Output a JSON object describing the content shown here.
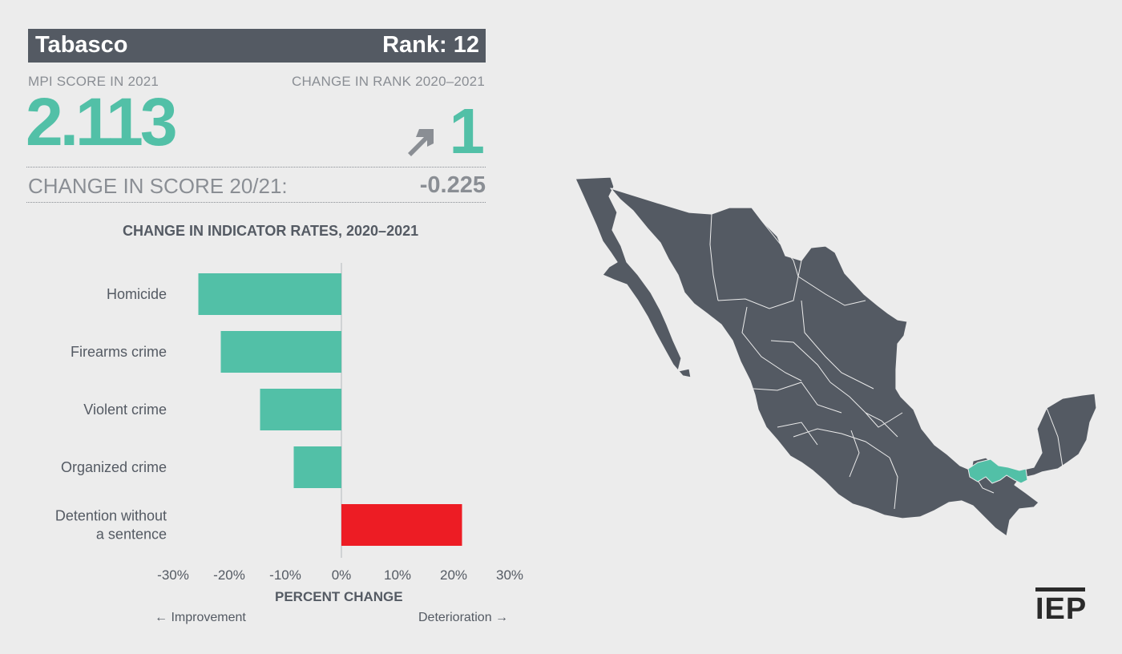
{
  "header": {
    "state": "Tabasco",
    "rank_label": "Rank: 12"
  },
  "score": {
    "label": "MPI SCORE IN 2021",
    "value": "2.113",
    "rank_change_label": "CHANGE IN RANK 2020–2021",
    "rank_change_value": "1",
    "rank_change_direction": "up",
    "score_change_label": "CHANGE IN SCORE 20/21:",
    "score_change_value": "-0.225"
  },
  "colors": {
    "accent": "#52c0a7",
    "negative": "#ed1c24",
    "dark": "#545a63",
    "muted": "#8a8e94",
    "background": "#ececec"
  },
  "chart_data": {
    "type": "bar",
    "orientation": "horizontal",
    "title": "CHANGE IN INDICATOR RATES, 2020–2021",
    "xlabel": "PERCENT CHANGE",
    "categories": [
      "Homicide",
      "Firearms crime",
      "Violent crime",
      "Organized crime",
      "Detention without a sentence"
    ],
    "category_lines": [
      [
        "Homicide"
      ],
      [
        "Firearms crime"
      ],
      [
        "Violent crime"
      ],
      [
        "Organized crime"
      ],
      [
        "Detention without",
        "a sentence"
      ]
    ],
    "values": [
      -25.5,
      -21.5,
      -14.5,
      -8.5,
      21.5
    ],
    "bar_colors": [
      "#52c0a7",
      "#52c0a7",
      "#52c0a7",
      "#52c0a7",
      "#ed1c24"
    ],
    "xlim": [
      -30,
      30
    ],
    "ticks": [
      "-30%",
      "-20%",
      "-10%",
      "0%",
      "10%",
      "20%",
      "30%"
    ],
    "tick_values": [
      -30,
      -20,
      -10,
      0,
      10,
      20,
      30
    ],
    "left_direction_label": "← Improvement",
    "right_direction_label": "Deterioration →"
  },
  "map": {
    "highlighted_state": "Tabasco"
  },
  "logo": {
    "text": "IEP"
  }
}
